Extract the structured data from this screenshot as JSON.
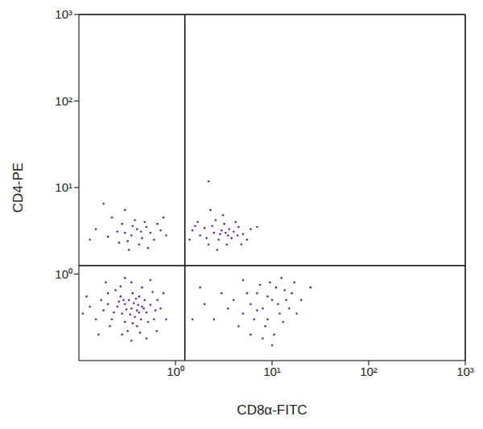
{
  "chart_data": {
    "type": "scatter",
    "x_label": "CD8α-FITC",
    "y_label": "CD4-PE",
    "log": true,
    "color": "#5e2a8c",
    "marker": "dot",
    "xlim": [
      0.1,
      1000
    ],
    "ylim": [
      0.1,
      1000
    ],
    "xticks": [
      {
        "value": 1,
        "label": "10⁰"
      },
      {
        "value": 10,
        "label": "10¹"
      },
      {
        "value": 100,
        "label": "10²"
      },
      {
        "value": 1000,
        "label": "10³"
      }
    ],
    "yticks": [
      {
        "value": 1,
        "label": "10⁰"
      },
      {
        "value": 10,
        "label": "10¹"
      },
      {
        "value": 100,
        "label": "10²"
      },
      {
        "value": 1000,
        "label": "10³"
      }
    ],
    "quadrant_x": 1.25,
    "quadrant_y": 1.25,
    "points": [
      [
        0.35,
        0.4
      ],
      [
        0.3,
        0.45
      ],
      [
        0.4,
        0.38
      ],
      [
        0.28,
        0.35
      ],
      [
        0.45,
        0.42
      ],
      [
        0.33,
        0.5
      ],
      [
        0.38,
        0.32
      ],
      [
        0.25,
        0.42
      ],
      [
        0.42,
        0.55
      ],
      [
        0.5,
        0.36
      ],
      [
        0.22,
        0.3
      ],
      [
        0.3,
        0.28
      ],
      [
        0.36,
        0.6
      ],
      [
        0.48,
        0.5
      ],
      [
        0.55,
        0.44
      ],
      [
        0.2,
        0.45
      ],
      [
        0.18,
        0.38
      ],
      [
        0.27,
        0.55
      ],
      [
        0.4,
        0.25
      ],
      [
        0.32,
        0.22
      ],
      [
        0.6,
        0.3
      ],
      [
        0.65,
        0.5
      ],
      [
        0.15,
        0.3
      ],
      [
        0.13,
        0.42
      ],
      [
        0.24,
        0.65
      ],
      [
        0.45,
        0.7
      ],
      [
        0.52,
        0.28
      ],
      [
        0.35,
        0.8
      ],
      [
        0.28,
        0.2
      ],
      [
        0.7,
        0.4
      ],
      [
        0.12,
        0.55
      ],
      [
        0.2,
        0.6
      ],
      [
        0.58,
        0.62
      ],
      [
        0.44,
        0.3
      ],
      [
        0.37,
        0.46
      ],
      [
        0.31,
        0.39
      ],
      [
        0.26,
        0.48
      ],
      [
        0.41,
        0.44
      ],
      [
        0.34,
        0.34
      ],
      [
        0.29,
        0.5
      ],
      [
        0.47,
        0.4
      ],
      [
        0.23,
        0.36
      ],
      [
        0.39,
        0.52
      ],
      [
        0.21,
        0.25
      ],
      [
        0.17,
        0.5
      ],
      [
        0.62,
        0.38
      ],
      [
        0.5,
        0.18
      ],
      [
        0.35,
        0.17
      ],
      [
        0.75,
        0.6
      ],
      [
        0.16,
        0.2
      ],
      [
        0.55,
        0.85
      ],
      [
        0.3,
        0.9
      ],
      [
        0.8,
        0.3
      ],
      [
        0.11,
        0.35
      ],
      [
        0.43,
        0.21
      ],
      [
        0.27,
        0.72
      ],
      [
        0.19,
        0.8
      ],
      [
        0.64,
        0.22
      ],
      [
        0.36,
        0.27
      ],
      [
        0.42,
        0.36
      ],
      [
        0.3,
        3
      ],
      [
        0.35,
        2.8
      ],
      [
        0.4,
        3.3
      ],
      [
        0.25,
        3.1
      ],
      [
        0.45,
        2.6
      ],
      [
        0.5,
        3.5
      ],
      [
        0.32,
        2.4
      ],
      [
        0.28,
        3.8
      ],
      [
        0.55,
        3
      ],
      [
        0.2,
        2.7
      ],
      [
        0.6,
        2.5
      ],
      [
        0.38,
        4.2
      ],
      [
        0.15,
        3.3
      ],
      [
        0.7,
        3.2
      ],
      [
        0.42,
        2.2
      ],
      [
        0.22,
        4.5
      ],
      [
        0.8,
        2.8
      ],
      [
        0.48,
        4
      ],
      [
        0.13,
        2.5
      ],
      [
        0.65,
        3.8
      ],
      [
        0.3,
        5.5
      ],
      [
        0.18,
        6.5
      ],
      [
        0.52,
        2
      ],
      [
        0.36,
        3.6
      ],
      [
        0.26,
        2.3
      ],
      [
        0.75,
        4.5
      ],
      [
        0.44,
        3.1
      ],
      [
        0.33,
        1.9
      ],
      [
        2.5,
        3
      ],
      [
        3,
        3.2
      ],
      [
        3.5,
        2.8
      ],
      [
        2,
        3.4
      ],
      [
        4,
        3.1
      ],
      [
        2.8,
        2.5
      ],
      [
        3.2,
        3.8
      ],
      [
        1.8,
        2.8
      ],
      [
        4.5,
        3.5
      ],
      [
        2.2,
        2.2
      ],
      [
        3.8,
        2.6
      ],
      [
        1.5,
        3.2
      ],
      [
        5,
        2.9
      ],
      [
        2.6,
        4.2
      ],
      [
        3.4,
        2.2
      ],
      [
        1.4,
        2.5
      ],
      [
        4.2,
        4
      ],
      [
        2.4,
        3.6
      ],
      [
        6,
        3.3
      ],
      [
        2.9,
        2.9
      ],
      [
        3.6,
        3.3
      ],
      [
        1.7,
        4
      ],
      [
        5.5,
        2.5
      ],
      [
        2.1,
        2.6
      ],
      [
        3.1,
        4.8
      ],
      [
        4.8,
        2.2
      ],
      [
        2.7,
        1.9
      ],
      [
        1.6,
        3.6
      ],
      [
        3.3,
        3
      ],
      [
        4.4,
        2.8
      ],
      [
        7,
        3.5
      ],
      [
        2.3,
        5.5
      ],
      [
        2.2,
        11.8
      ],
      [
        8,
        0.4
      ],
      [
        10,
        0.5
      ],
      [
        6,
        0.45
      ],
      [
        12,
        0.35
      ],
      [
        9,
        0.3
      ],
      [
        7,
        0.6
      ],
      [
        11,
        0.7
      ],
      [
        5,
        0.35
      ],
      [
        14,
        0.5
      ],
      [
        8.5,
        0.25
      ],
      [
        4,
        0.5
      ],
      [
        13,
        0.28
      ],
      [
        6.5,
        0.3
      ],
      [
        15,
        0.4
      ],
      [
        9.5,
        0.8
      ],
      [
        3.5,
        0.4
      ],
      [
        10.5,
        0.2
      ],
      [
        7.5,
        0.75
      ],
      [
        5.5,
        0.6
      ],
      [
        16,
        0.6
      ],
      [
        12.5,
        0.9
      ],
      [
        4.5,
        0.25
      ],
      [
        18,
        0.35
      ],
      [
        3,
        0.6
      ],
      [
        8,
        0.18
      ],
      [
        11.5,
        0.45
      ],
      [
        6,
        0.2
      ],
      [
        2.5,
        0.3
      ],
      [
        20,
        0.5
      ],
      [
        13.5,
        0.65
      ],
      [
        7,
        0.38
      ],
      [
        9,
        0.55
      ],
      [
        10,
        0.15
      ],
      [
        2,
        0.45
      ],
      [
        17,
        0.8
      ],
      [
        25,
        0.7
      ],
      [
        5,
        0.85
      ],
      [
        1.5,
        0.3
      ],
      [
        1.8,
        0.7
      ]
    ]
  }
}
